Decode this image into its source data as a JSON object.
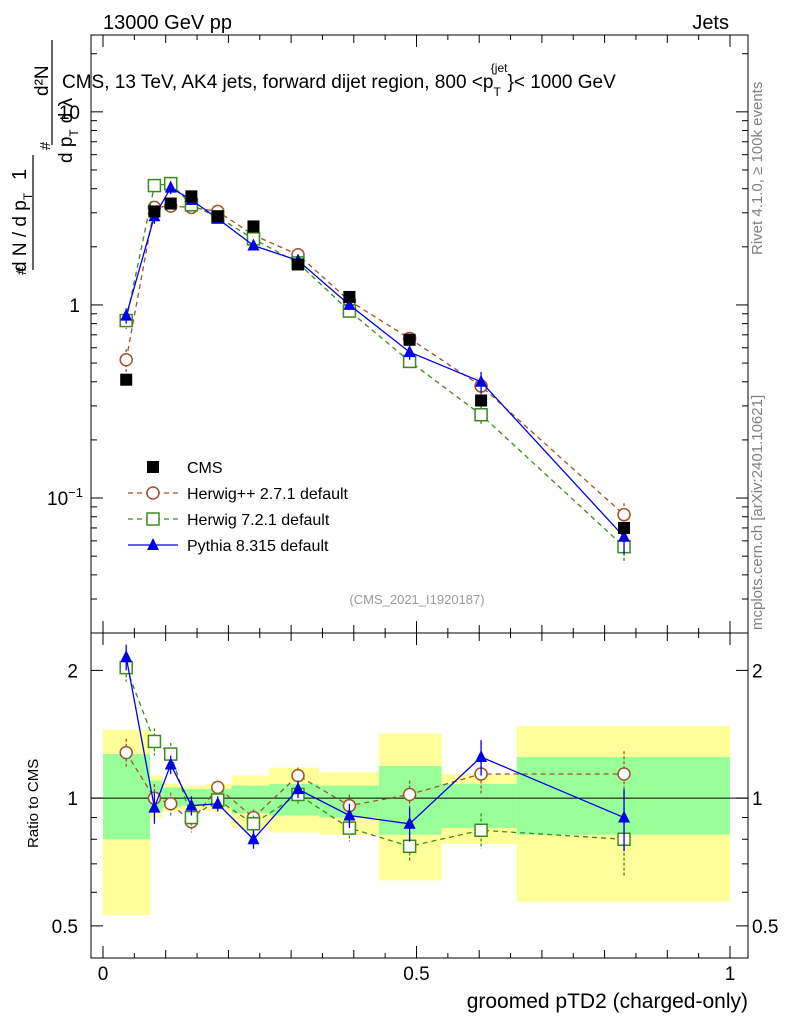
{
  "header": {
    "left": "13000 GeV pp",
    "right": "Jets"
  },
  "title": {
    "prefix": "CMS, 13 TeV, AK4 jets, forward dijet region, 800 <p",
    "sub": "T",
    "sup": "{jet",
    "suffix": "}< 1000 GeV"
  },
  "ylabel_top": {
    "num_one": "1",
    "den_part": "d N / d p",
    "den_sub": "T",
    "hash": "#",
    "num_d2N": "d²N",
    "den_dp": "d p",
    "den_dp_sub": "T",
    "den_dl": "d λ"
  },
  "side_labels": {
    "rivet": "Rivet 4.1.0, ≥ 100k events",
    "mcplots": "mcplots.cern.ch [arXiv:2401.10621]"
  },
  "watermark": "(CMS_2021_I1920187)",
  "ratio_ylabel": "Ratio to CMS",
  "xlabel": "groomed pTD2 (charged-only)",
  "colors": {
    "cms": "#000000",
    "herwigpp": "#a0522d",
    "herwig7": "#3a8a1c",
    "pythia": "#0000e6",
    "band_inner": "#99ff99",
    "band_outer": "#ffff99"
  },
  "chart_data": {
    "type": "scatter",
    "x_ticks": [
      "0",
      "0.5",
      "1"
    ],
    "xlim": [
      0,
      1
    ],
    "main": {
      "scale": "log",
      "ylim": [
        0.02,
        25
      ],
      "y_ticks": [
        {
          "v": 0.1,
          "label": "10^-1"
        },
        {
          "v": 1,
          "label": "1"
        },
        {
          "v": 10,
          "label": "10"
        }
      ]
    },
    "ratio": {
      "scale": "log",
      "ylim": [
        0.42,
        2.45
      ],
      "y_ticks": [
        {
          "v": 0.5,
          "label": "0.5"
        },
        {
          "v": 1,
          "label": "1"
        },
        {
          "v": 2,
          "label": "2"
        }
      ]
    },
    "bins": [
      {
        "lo": 0.0,
        "hi": 0.075,
        "inner": [
          0.8,
          1.27
        ],
        "outer": [
          0.53,
          1.45
        ]
      },
      {
        "lo": 0.075,
        "hi": 0.095,
        "inner": [
          0.93,
          1.1
        ],
        "outer": [
          0.9,
          1.13
        ]
      },
      {
        "lo": 0.095,
        "hi": 0.125,
        "inner": [
          0.95,
          1.06
        ],
        "outer": [
          0.93,
          1.08
        ]
      },
      {
        "lo": 0.125,
        "hi": 0.165,
        "inner": [
          0.96,
          1.05
        ],
        "outer": [
          0.94,
          1.07
        ]
      },
      {
        "lo": 0.165,
        "hi": 0.205,
        "inner": [
          0.96,
          1.05
        ],
        "outer": [
          0.93,
          1.08
        ]
      },
      {
        "lo": 0.205,
        "hi": 0.265,
        "inner": [
          0.92,
          1.07
        ],
        "outer": [
          0.85,
          1.13
        ]
      },
      {
        "lo": 0.265,
        "hi": 0.345,
        "inner": [
          0.91,
          1.08
        ],
        "outer": [
          0.83,
          1.18
        ]
      },
      {
        "lo": 0.345,
        "hi": 0.44,
        "inner": [
          0.9,
          1.07
        ],
        "outer": [
          0.82,
          1.15
        ]
      },
      {
        "lo": 0.44,
        "hi": 0.54,
        "inner": [
          0.82,
          1.19
        ],
        "outer": [
          0.64,
          1.42
        ]
      },
      {
        "lo": 0.54,
        "hi": 0.66,
        "inner": [
          0.85,
          1.08
        ],
        "outer": [
          0.78,
          1.14
        ]
      },
      {
        "lo": 0.66,
        "hi": 1.0,
        "inner": [
          0.82,
          1.25
        ],
        "outer": [
          0.57,
          1.48
        ]
      }
    ],
    "series": [
      {
        "name": "CMS",
        "key": "cms",
        "marker": "square-filled",
        "line": "none",
        "x": [
          0.037,
          0.082,
          0.108,
          0.141,
          0.183,
          0.24,
          0.311,
          0.393,
          0.489,
          0.603,
          0.831
        ],
        "y": [
          0.41,
          3.05,
          3.35,
          3.65,
          2.88,
          2.55,
          1.62,
          1.1,
          0.66,
          0.32,
          0.07
        ],
        "err": [
          0.02,
          0.1,
          0.1,
          0.1,
          0.08,
          0.08,
          0.05,
          0.04,
          0.03,
          0.02,
          0.005
        ]
      },
      {
        "name": "Herwig++ 2.7.1 default",
        "key": "herwigpp",
        "marker": "circle-open",
        "line": "dashed",
        "x": [
          0.037,
          0.082,
          0.108,
          0.141,
          0.183,
          0.24,
          0.311,
          0.393,
          0.489,
          0.603,
          0.831
        ],
        "y": [
          0.52,
          3.2,
          3.25,
          3.2,
          3.05,
          2.3,
          1.82,
          1.05,
          0.67,
          0.38,
          0.082
        ],
        "err": [
          0.07,
          0.25,
          0.2,
          0.15,
          0.1,
          0.1,
          0.08,
          0.06,
          0.05,
          0.04,
          0.012
        ]
      },
      {
        "name": "Herwig 7.2.1 default",
        "key": "herwig7",
        "marker": "square-open",
        "line": "dashed",
        "x": [
          0.037,
          0.082,
          0.108,
          0.141,
          0.183,
          0.24,
          0.311,
          0.393,
          0.489,
          0.603,
          0.831
        ],
        "y": [
          0.83,
          4.15,
          4.25,
          3.3,
          2.85,
          2.2,
          1.65,
          0.93,
          0.51,
          0.27,
          0.056
        ],
        "err": [
          0.08,
          0.3,
          0.3,
          0.2,
          0.15,
          0.12,
          0.08,
          0.06,
          0.04,
          0.03,
          0.01
        ]
      },
      {
        "name": "Pythia 8.315 default",
        "key": "pythia",
        "marker": "triangle-filled",
        "line": "solid",
        "x": [
          0.037,
          0.082,
          0.108,
          0.141,
          0.183,
          0.24,
          0.311,
          0.393,
          0.489,
          0.603,
          0.831
        ],
        "y": [
          0.88,
          2.88,
          4.05,
          3.5,
          2.8,
          2.03,
          1.7,
          1.0,
          0.57,
          0.4,
          0.063
        ],
        "err": [
          0.08,
          0.25,
          0.3,
          0.2,
          0.12,
          0.1,
          0.08,
          0.06,
          0.05,
          0.05,
          0.012
        ]
      }
    ],
    "ratios": [
      {
        "key": "herwigpp",
        "y": [
          1.28,
          1.0,
          0.97,
          0.88,
          1.06,
          0.9,
          1.13,
          0.96,
          1.02,
          1.14,
          1.14
        ],
        "err": [
          0.1,
          0.08,
          0.06,
          0.05,
          0.04,
          0.04,
          0.05,
          0.06,
          0.08,
          0.12,
          0.15
        ]
      },
      {
        "key": "herwig7",
        "y": [
          2.03,
          1.36,
          1.27,
          0.9,
          0.99,
          0.87,
          1.02,
          0.85,
          0.77,
          0.84,
          0.8
        ],
        "err": [
          0.15,
          0.1,
          0.08,
          0.05,
          0.04,
          0.04,
          0.05,
          0.06,
          0.06,
          0.08,
          0.15
        ]
      },
      {
        "key": "pythia",
        "y": [
          2.15,
          0.95,
          1.2,
          0.96,
          0.97,
          0.8,
          1.05,
          0.91,
          0.87,
          1.25,
          0.9
        ],
        "err": [
          0.15,
          0.08,
          0.06,
          0.05,
          0.04,
          0.04,
          0.05,
          0.06,
          0.08,
          0.12,
          0.15
        ]
      }
    ]
  }
}
